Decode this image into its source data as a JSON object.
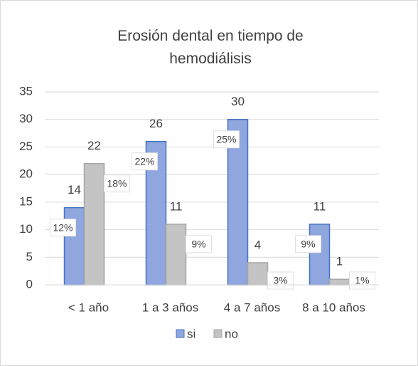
{
  "chart_data": {
    "type": "bar",
    "title": "Erosión dental en tiempo de hemodiálisis",
    "categories": [
      "< 1 año",
      "1 a 3 años",
      "4 a 7 años",
      "8 a 10 años"
    ],
    "series": [
      {
        "name": "si",
        "color": "#8fa6de",
        "border": "#4472c4",
        "values": [
          14,
          26,
          30,
          11
        ],
        "percent_labels": [
          "12%",
          "22%",
          "25%",
          "9%"
        ]
      },
      {
        "name": "no",
        "color": "#c4c4c4",
        "border": "#a5a5a5",
        "values": [
          22,
          11,
          4,
          1
        ],
        "percent_labels": [
          "18%",
          "9%",
          "3%",
          "1%"
        ]
      }
    ],
    "ylim": [
      0,
      35
    ],
    "yticks": [
      0,
      5,
      10,
      15,
      20,
      25,
      30,
      35
    ],
    "grid": true,
    "legend": "bottom"
  }
}
